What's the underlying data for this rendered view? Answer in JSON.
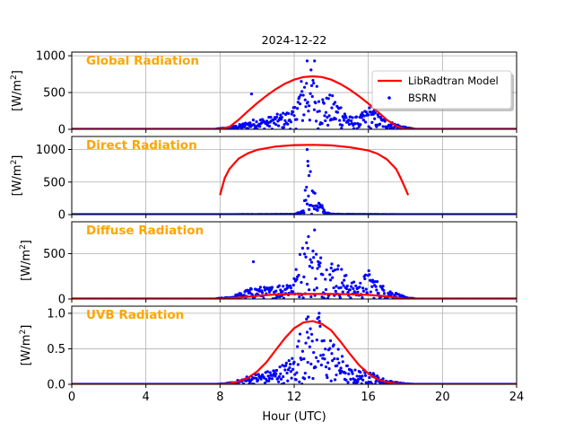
{
  "chart_data": {
    "type": "line",
    "title": "2024-12-22",
    "xlabel": "Hour (UTC)",
    "xlim": [
      0,
      24
    ],
    "x_ticks": [
      0,
      4,
      8,
      12,
      16,
      20,
      24
    ],
    "grid": true,
    "legend": {
      "placement": "top-right of first panel",
      "entries": [
        {
          "name": "LibRadtran Model",
          "style": "line",
          "color": "#ff0000"
        },
        {
          "name": "BSRN",
          "style": "points",
          "color": "#0000ff"
        }
      ]
    },
    "panels": [
      {
        "title": "Global Radiation",
        "ylabel": "[W/m2]",
        "ylim": [
          0,
          1050
        ],
        "y_ticks": [
          0,
          500,
          1000
        ],
        "model": {
          "x": [
            0,
            8.0,
            8.5,
            9.0,
            9.5,
            10.0,
            10.5,
            11.0,
            11.5,
            12.0,
            12.5,
            13.0,
            13.5,
            14.0,
            14.5,
            15.0,
            15.5,
            16.0,
            16.5,
            17.0,
            17.5,
            18.0,
            24
          ],
          "y": [
            0,
            0,
            30,
            130,
            245,
            355,
            455,
            545,
            620,
            675,
            710,
            720,
            710,
            675,
            615,
            540,
            450,
            350,
            240,
            130,
            45,
            0,
            0
          ]
        },
        "bsrn_envelope": {
          "x": [
            7.8,
            8.5,
            9.0,
            9.5,
            10.0,
            10.5,
            11.0,
            11.5,
            12.0,
            12.3,
            12.7,
            13.0,
            13.3,
            13.7,
            14.0,
            14.5,
            15.0,
            15.5,
            16.0,
            16.5,
            17.0,
            17.5,
            18.0,
            18.5
          ],
          "y": [
            5,
            30,
            60,
            110,
            150,
            160,
            200,
            240,
            300,
            650,
            900,
            800,
            600,
            450,
            480,
            380,
            180,
            170,
            330,
            220,
            120,
            80,
            30,
            5
          ]
        },
        "notable_points": [
          {
            "x": 9.7,
            "y": 480
          },
          {
            "x": 12.7,
            "y": 930
          },
          {
            "x": 13.1,
            "y": 930
          }
        ]
      },
      {
        "title": "Direct Radiation",
        "ylabel": "[W/m2]",
        "ylim": [
          0,
          1200
        ],
        "y_ticks": [
          0,
          500,
          1000
        ],
        "model": {
          "x": [
            8.0,
            8.25,
            8.5,
            9.0,
            9.5,
            10.0,
            11.0,
            12.0,
            13.0,
            14.0,
            15.0,
            16.0,
            16.5,
            17.0,
            17.5,
            17.75,
            18.0,
            18.15
          ],
          "y": [
            300,
            560,
            700,
            860,
            940,
            995,
            1045,
            1068,
            1072,
            1063,
            1035,
            985,
            935,
            850,
            700,
            560,
            400,
            300
          ]
        },
        "bsrn_envelope": {
          "x": [
            7.8,
            12.0,
            12.2,
            12.5,
            12.7,
            12.9,
            13.0,
            13.2,
            13.5,
            13.7,
            14.0,
            14.3,
            14.5,
            18.5
          ],
          "y": [
            0,
            5,
            30,
            60,
            1000,
            750,
            400,
            300,
            150,
            40,
            10,
            15,
            5,
            0
          ]
        },
        "notable_points": [
          {
            "x": 12.7,
            "y": 1000
          },
          {
            "x": 12.75,
            "y": 750
          },
          {
            "x": 12.8,
            "y": 600
          }
        ]
      },
      {
        "title": "Diffuse Radiation",
        "ylabel": "[W/m2]",
        "ylim": [
          0,
          850
        ],
        "y_ticks": [
          0,
          500
        ],
        "model": {
          "x": [
            0,
            8.0,
            9.0,
            10.0,
            11.0,
            12.0,
            13.0,
            14.0,
            15.0,
            16.0,
            17.0,
            18.0,
            24
          ],
          "y": [
            0,
            0,
            15,
            35,
            50,
            55,
            55,
            55,
            52,
            45,
            30,
            0,
            0
          ]
        },
        "bsrn_envelope": {
          "x": [
            7.8,
            8.5,
            9.0,
            9.5,
            10.0,
            10.5,
            11.0,
            11.5,
            12.0,
            12.3,
            12.7,
            13.0,
            13.3,
            13.7,
            14.0,
            14.5,
            15.0,
            15.5,
            16.0,
            16.5,
            17.0,
            17.5,
            18.0,
            18.5
          ],
          "y": [
            5,
            20,
            60,
            110,
            140,
            130,
            150,
            200,
            250,
            520,
            800,
            620,
            550,
            420,
            450,
            380,
            200,
            180,
            330,
            200,
            120,
            70,
            20,
            5
          ]
        },
        "notable_points": [
          {
            "x": 9.8,
            "y": 410
          },
          {
            "x": 13.1,
            "y": 760
          }
        ]
      },
      {
        "title": "UVB Radiation",
        "ylabel": "[W/m2]",
        "ylim": [
          0,
          1.1
        ],
        "y_ticks": [
          0.0,
          0.5,
          1.0
        ],
        "model": {
          "x": [
            0,
            8.0,
            8.5,
            9.0,
            9.5,
            10.0,
            10.5,
            11.0,
            11.5,
            12.0,
            12.5,
            13.0,
            13.5,
            14.0,
            14.5,
            15.0,
            15.5,
            16.0,
            16.5,
            17.0,
            17.5,
            18.0,
            24
          ],
          "y": [
            0,
            0,
            0.01,
            0.04,
            0.09,
            0.18,
            0.31,
            0.48,
            0.65,
            0.79,
            0.87,
            0.89,
            0.85,
            0.76,
            0.6,
            0.43,
            0.27,
            0.15,
            0.07,
            0.03,
            0.01,
            0,
            0
          ]
        },
        "bsrn_envelope": {
          "x": [
            7.8,
            8.5,
            9.0,
            9.5,
            10.0,
            10.5,
            11.0,
            11.5,
            12.0,
            12.3,
            12.7,
            13.0,
            13.3,
            13.7,
            14.0,
            14.5,
            15.0,
            15.5,
            16.0,
            16.5,
            17.0,
            17.5,
            18.0,
            18.5
          ],
          "y": [
            0,
            0.02,
            0.06,
            0.12,
            0.16,
            0.18,
            0.24,
            0.3,
            0.45,
            0.75,
            0.97,
            0.85,
            1.0,
            0.6,
            0.7,
            0.45,
            0.22,
            0.2,
            0.22,
            0.12,
            0.06,
            0.03,
            0.01,
            0
          ]
        },
        "notable_points": [
          {
            "x": 12.75,
            "y": 0.95
          },
          {
            "x": 13.35,
            "y": 1.0
          }
        ]
      }
    ]
  }
}
